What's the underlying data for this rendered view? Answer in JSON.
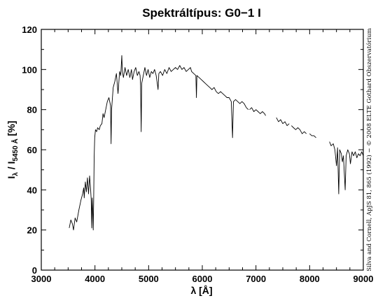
{
  "chart_data": {
    "type": "line",
    "title": "Spektráltípus: G0−1 I",
    "xlabel": "λ [Å]",
    "ylabel": {
      "prefix": "I",
      "prefix_sub": "λ",
      "middle": " / I",
      "middle_sub": "5450 Å",
      "suffix": " [%]"
    },
    "xlim": [
      3000,
      9000
    ],
    "ylim": [
      0,
      120
    ],
    "x_ticks": [
      3000,
      4000,
      5000,
      6000,
      7000,
      8000,
      9000
    ],
    "y_ticks": [
      0,
      20,
      40,
      60,
      80,
      100,
      120
    ],
    "x_tick_labels": [
      "3000",
      "4000",
      "5000",
      "6000",
      "7000",
      "8000",
      "9000"
    ],
    "y_tick_labels": [
      "0",
      "20",
      "40",
      "60",
      "80",
      "100",
      "120"
    ],
    "grid": false,
    "series": [
      {
        "segments": [
          [
            [
              3520,
              21
            ],
            [
              3550,
              25
            ],
            [
              3580,
              23
            ],
            [
              3600,
              20
            ],
            [
              3630,
              26
            ],
            [
              3660,
              24
            ],
            [
              3700,
              30
            ],
            [
              3740,
              35
            ],
            [
              3770,
              38
            ],
            [
              3790,
              41
            ],
            [
              3800,
              36
            ],
            [
              3820,
              44
            ],
            [
              3840,
              39
            ],
            [
              3860,
              46
            ],
            [
              3880,
              38
            ],
            [
              3900,
              47
            ],
            [
              3920,
              40
            ],
            [
              3930,
              35
            ],
            [
              3935,
              26
            ],
            [
              3940,
              21
            ],
            [
              3945,
              30
            ],
            [
              3950,
              36
            ],
            [
              3960,
              28
            ],
            [
              3968,
              20
            ],
            [
              3975,
              34
            ],
            [
              3985,
              56
            ],
            [
              3995,
              66
            ],
            [
              4010,
              70
            ],
            [
              4030,
              69
            ],
            [
              4050,
              71
            ],
            [
              4080,
              70
            ],
            [
              4100,
              72
            ],
            [
              4130,
              73
            ],
            [
              4150,
              78
            ],
            [
              4170,
              76
            ],
            [
              4200,
              80
            ],
            [
              4230,
              84
            ],
            [
              4260,
              86
            ],
            [
              4290,
              82
            ],
            [
              4300,
              63
            ],
            [
              4310,
              80
            ],
            [
              4340,
              91
            ],
            [
              4370,
              94
            ],
            [
              4400,
              98
            ],
            [
              4430,
              88
            ],
            [
              4460,
              99
            ],
            [
              4480,
              97
            ],
            [
              4500,
              107
            ],
            [
              4510,
              99
            ],
            [
              4530,
              96
            ],
            [
              4560,
              101
            ],
            [
              4590,
              97
            ],
            [
              4620,
              100
            ],
            [
              4650,
              96
            ],
            [
              4680,
              100
            ],
            [
              4700,
              95
            ],
            [
              4730,
              99
            ],
            [
              4760,
              101
            ],
            [
              4790,
              97
            ],
            [
              4820,
              99
            ],
            [
              4840,
              97
            ],
            [
              4850,
              92
            ],
            [
              4861,
              69
            ],
            [
              4870,
              93
            ],
            [
              4900,
              97
            ],
            [
              4930,
              101
            ],
            [
              4960,
              97
            ],
            [
              4990,
              100
            ],
            [
              5020,
              96
            ],
            [
              5050,
              99
            ],
            [
              5080,
              98
            ],
            [
              5110,
              100
            ],
            [
              5140,
              97
            ],
            [
              5167,
              92
            ],
            [
              5175,
              90
            ],
            [
              5190,
              98
            ],
            [
              5220,
              99
            ],
            [
              5260,
              97
            ],
            [
              5300,
              100
            ],
            [
              5340,
              98
            ],
            [
              5380,
              101
            ],
            [
              5420,
              99
            ],
            [
              5460,
              100
            ],
            [
              5500,
              101
            ],
            [
              5540,
              100
            ],
            [
              5580,
              102
            ],
            [
              5620,
              100
            ],
            [
              5660,
              101
            ],
            [
              5700,
              99
            ],
            [
              5740,
              100
            ],
            [
              5780,
              101
            ],
            [
              5800,
              99
            ],
            [
              5840,
              98
            ],
            [
              5880,
              97
            ],
            [
              5890,
              86
            ],
            [
              5900,
              97
            ],
            [
              5940,
              96
            ],
            [
              5980,
              95
            ],
            [
              6020,
              94
            ],
            [
              6060,
              93
            ],
            [
              6100,
              92
            ],
            [
              6140,
              91
            ],
            [
              6180,
              90
            ],
            [
              6220,
              91
            ],
            [
              6260,
              89
            ],
            [
              6300,
              88
            ],
            [
              6340,
              89
            ],
            [
              6380,
              88
            ],
            [
              6420,
              87
            ],
            [
              6460,
              86
            ],
            [
              6500,
              86
            ],
            [
              6540,
              84
            ],
            [
              6563,
              66
            ],
            [
              6580,
              84
            ],
            [
              6620,
              85
            ],
            [
              6660,
              84
            ],
            [
              6700,
              83
            ],
            [
              6740,
              84
            ],
            [
              6780,
              83
            ],
            [
              6820,
              81
            ],
            [
              6860,
              80
            ]
          ],
          [
            [
              6880,
              80
            ],
            [
              6920,
              81
            ],
            [
              6960,
              79
            ],
            [
              7000,
              80
            ],
            [
              7040,
              79
            ],
            [
              7080,
              78
            ],
            [
              7120,
              79
            ],
            [
              7160,
              78
            ],
            [
              7180,
              77
            ]
          ],
          [
            [
              7380,
              76
            ],
            [
              7420,
              74
            ],
            [
              7460,
              75
            ],
            [
              7500,
              73
            ],
            [
              7540,
              74
            ],
            [
              7580,
              72
            ],
            [
              7620,
              73
            ]
          ],
          [
            [
              7660,
              72
            ],
            [
              7700,
              71
            ],
            [
              7740,
              70
            ],
            [
              7780,
              71
            ],
            [
              7820,
              70
            ],
            [
              7860,
              68
            ],
            [
              7900,
              69
            ],
            [
              7940,
              68
            ]
          ],
          [
            [
              8000,
              68
            ],
            [
              8040,
              67
            ],
            [
              8080,
              67
            ],
            [
              8120,
              66
            ]
          ],
          [
            [
              8370,
              64
            ],
            [
              8400,
              62
            ],
            [
              8440,
              63
            ],
            [
              8470,
              60
            ],
            [
              8500,
              52
            ],
            [
              8520,
              61
            ],
            [
              8542,
              38
            ],
            [
              8560,
              60
            ],
            [
              8590,
              58
            ],
            [
              8610,
              54
            ],
            [
              8630,
              57
            ],
            [
              8662,
              40
            ],
            [
              8680,
              57
            ],
            [
              8710,
              60
            ],
            [
              8740,
              58
            ],
            [
              8760,
              53
            ],
            [
              8790,
              59
            ],
            [
              8820,
              57
            ],
            [
              8850,
              59
            ],
            [
              8880,
              56
            ],
            [
              8910,
              58
            ],
            [
              8940,
              57
            ],
            [
              8970,
              59
            ],
            [
              9000,
              57
            ]
          ]
        ]
      }
    ]
  },
  "credit": "Silva and Cornell, ApJS 81, 865 (1992) − © 2008 ELTE Gothard Obszervatórium"
}
